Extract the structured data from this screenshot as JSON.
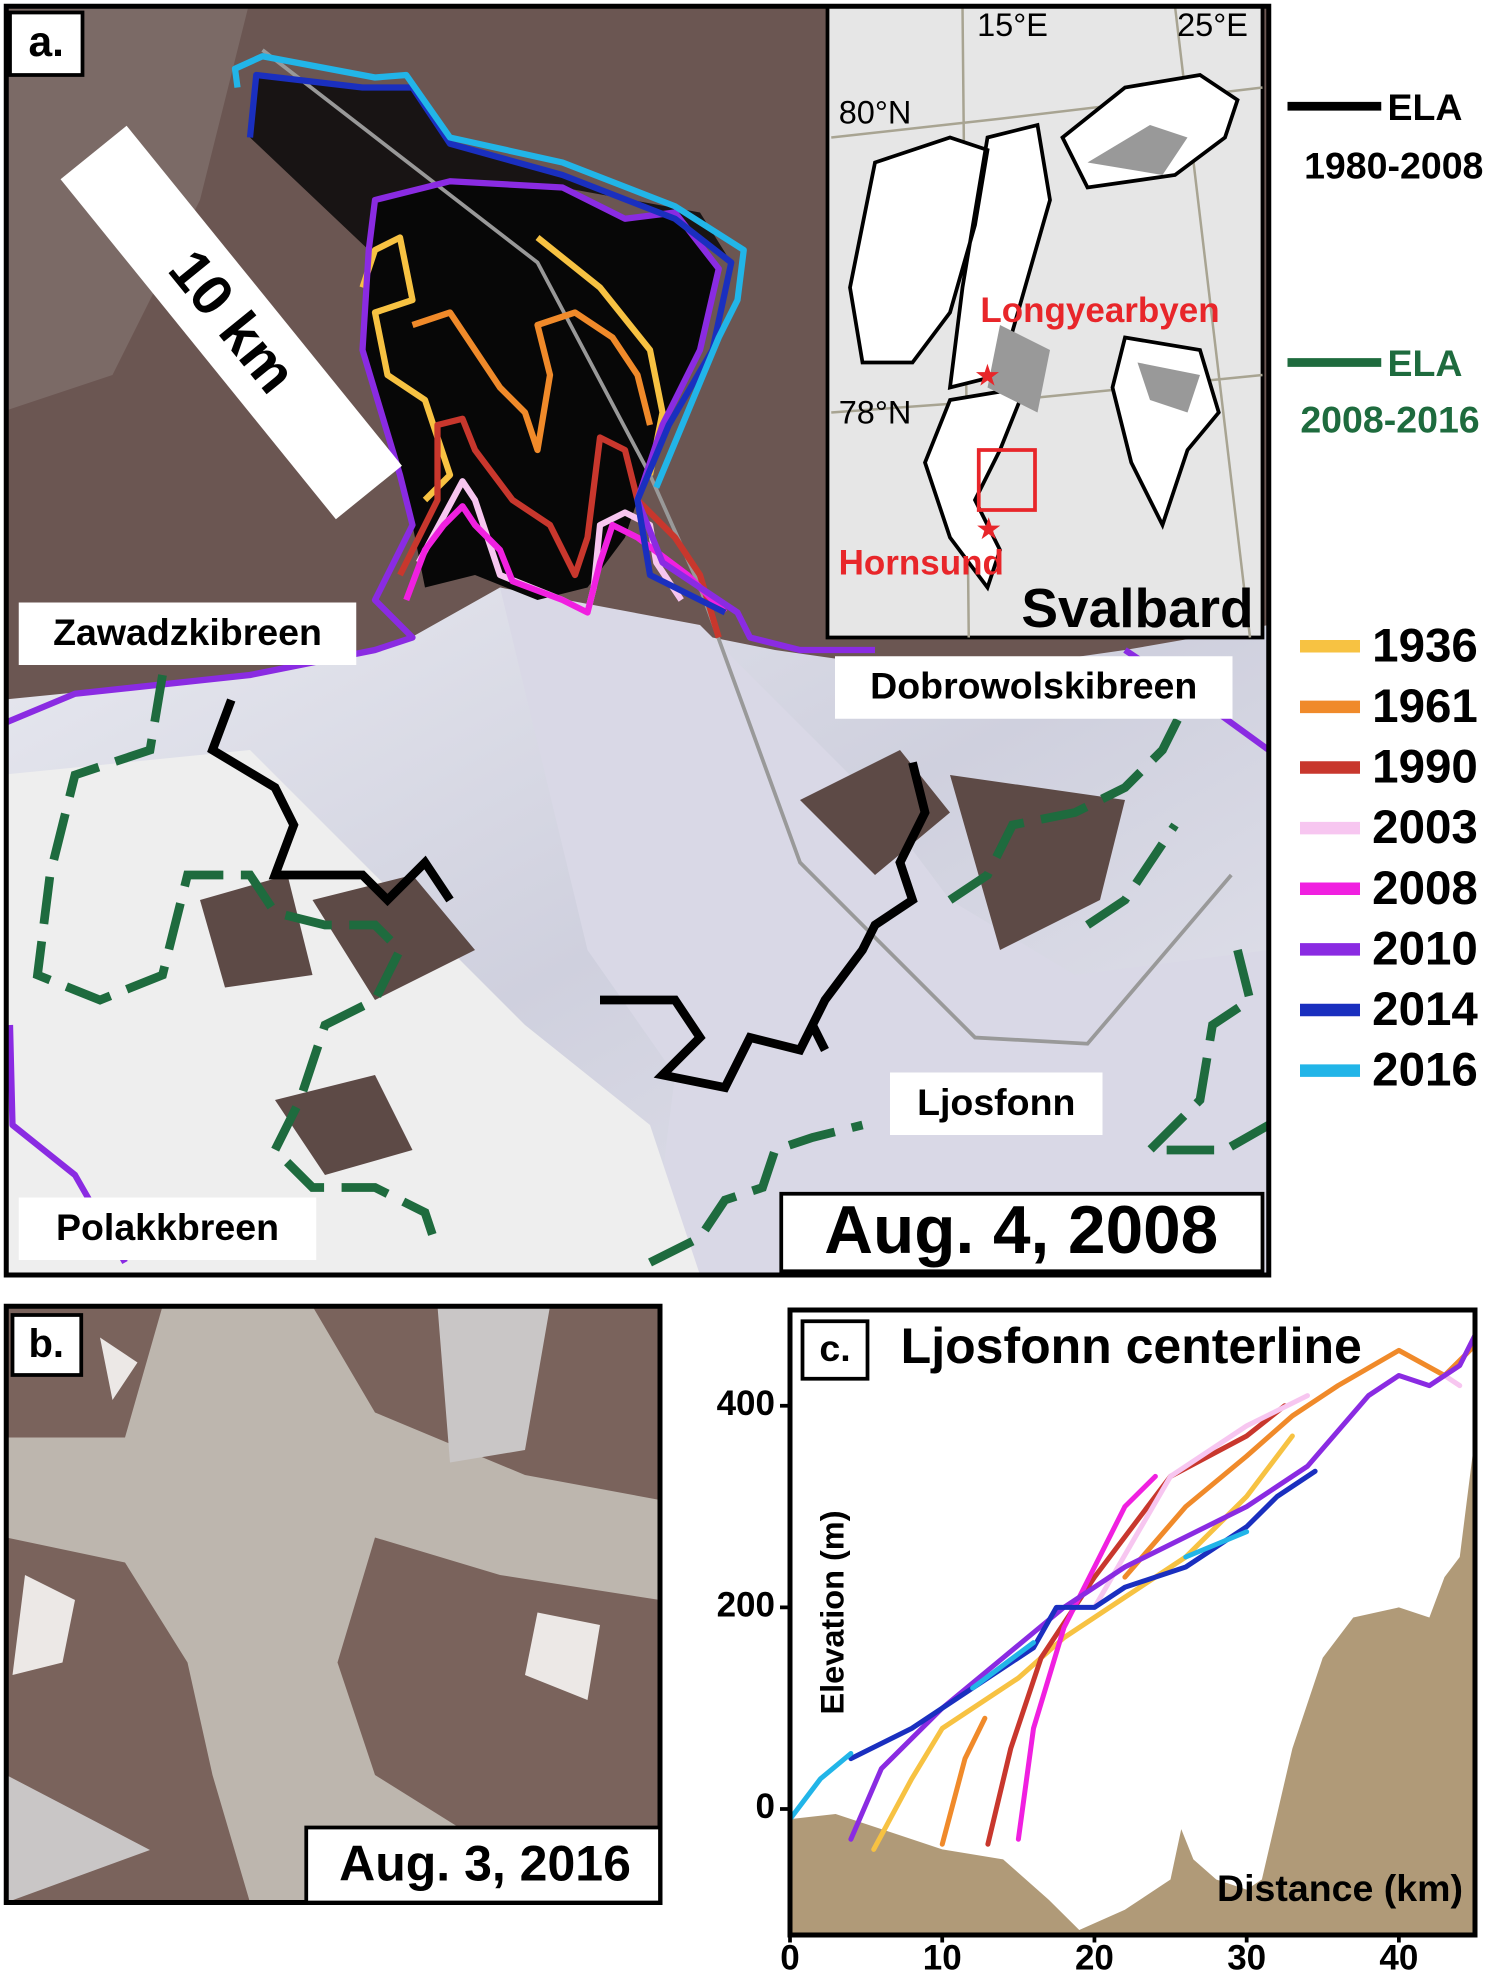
{
  "panel_a": {
    "label": "a.",
    "scale_bar": "10 km",
    "date": "Aug. 4, 2008",
    "place_labels": [
      "Zawadzkibreen",
      "Dobrowolskibreen",
      "Ljosfonn",
      "Polakkbreen"
    ],
    "inset": {
      "lon_labels": [
        "15°E",
        "25°E"
      ],
      "lat_labels": [
        "80°N",
        "78°N"
      ],
      "towns": [
        "Longyearbyen",
        "Hornsund"
      ],
      "title": "Svalbard"
    },
    "ela_legend": [
      {
        "name": "ELA",
        "period": "1980-2008",
        "color": "#000000"
      },
      {
        "name": "ELA",
        "period": "2008-2016",
        "color": "#1e6b3e"
      }
    ]
  },
  "panel_b": {
    "label": "b.",
    "date": "Aug. 3, 2016"
  },
  "chart_data": {
    "type": "line",
    "label": "c.",
    "title": "Ljosfonn centerline",
    "xlabel": "Distance (km)",
    "ylabel": "Elevation (m)",
    "xlim": [
      0,
      45
    ],
    "ylim": [
      -125,
      495
    ],
    "xticks": [
      0,
      10,
      20,
      30,
      40
    ],
    "yticks": [
      0,
      200,
      400
    ],
    "bed": {
      "color": "#b09a78",
      "x": [
        0,
        3,
        6,
        10,
        14,
        17,
        19,
        22,
        25,
        25.7,
        26.5,
        28,
        30,
        31,
        33,
        35,
        37,
        40,
        42,
        43,
        44,
        45
      ],
      "values": [
        -10,
        -5,
        -20,
        -40,
        -50,
        -90,
        -120,
        -100,
        -70,
        -20,
        -50,
        -70,
        -80,
        -70,
        60,
        150,
        190,
        200,
        190,
        230,
        250,
        370
      ]
    },
    "series": [
      {
        "name": "1936",
        "color": "#f7c242",
        "x": [
          5.5,
          8,
          10,
          15,
          18,
          22,
          26,
          30,
          33
        ],
        "values": [
          -40,
          30,
          80,
          130,
          170,
          210,
          250,
          310,
          370
        ]
      },
      {
        "name": "1961",
        "color": "#f08a2a",
        "x": [
          10,
          11.5,
          12.8,
          null,
          22,
          26,
          30,
          33,
          36,
          40,
          43,
          45
        ],
        "values": [
          -35,
          50,
          90,
          null,
          230,
          300,
          350,
          390,
          420,
          455,
          430,
          460
        ]
      },
      {
        "name": "1990",
        "color": "#c8372d",
        "x": [
          13,
          14.5,
          16.5,
          20,
          25,
          30,
          32.5
        ],
        "values": [
          -35,
          60,
          150,
          230,
          330,
          370,
          400
        ]
      },
      {
        "name": "2003",
        "color": "#f7c6f0",
        "x": [
          20,
          25,
          30,
          34,
          null,
          43,
          44
        ],
        "values": [
          200,
          330,
          380,
          410,
          null,
          430,
          420
        ]
      },
      {
        "name": "2008",
        "color": "#f020e0",
        "x": [
          15,
          16,
          18,
          20,
          22,
          24
        ],
        "values": [
          -30,
          80,
          180,
          240,
          300,
          330
        ]
      },
      {
        "name": "2010",
        "color": "#8a2be2",
        "x": [
          4,
          6,
          10,
          14,
          18,
          22,
          26,
          30,
          34,
          38,
          40,
          42,
          44,
          45
        ],
        "values": [
          -30,
          40,
          100,
          150,
          200,
          240,
          270,
          300,
          340,
          410,
          430,
          420,
          440,
          470
        ]
      },
      {
        "name": "2014",
        "color": "#1a2fbf",
        "x": [
          4,
          8,
          12,
          16,
          17.5,
          20,
          22,
          26,
          30,
          32,
          34.5
        ],
        "values": [
          50,
          80,
          120,
          160,
          200,
          200,
          220,
          240,
          280,
          310,
          335
        ]
      },
      {
        "name": "2016",
        "color": "#22b5e8",
        "x": [
          0,
          2,
          4,
          null,
          12,
          16,
          null,
          26,
          30
        ],
        "values": [
          -10,
          30,
          55,
          null,
          120,
          165,
          null,
          250,
          275
        ]
      }
    ]
  }
}
